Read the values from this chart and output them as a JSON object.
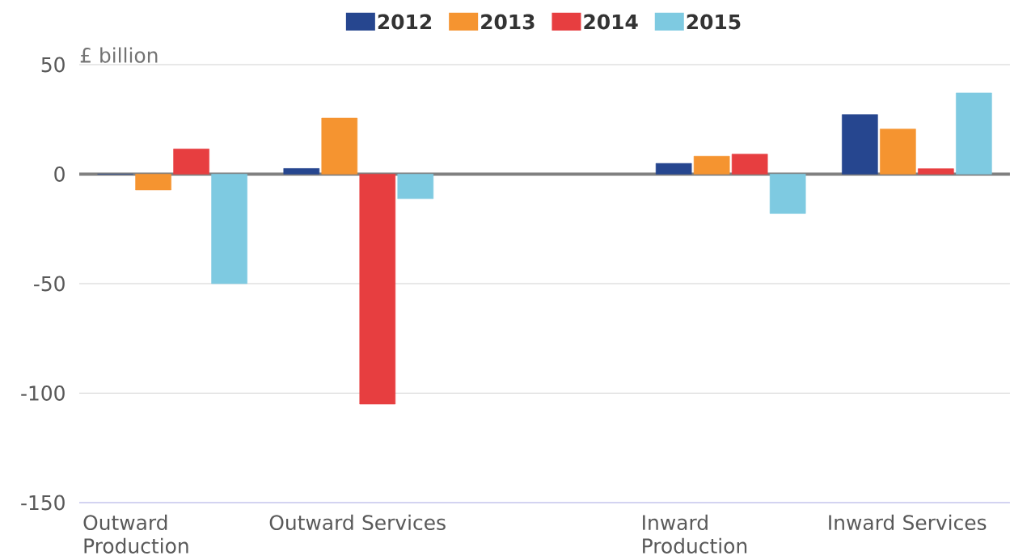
{
  "chart_data": {
    "type": "bar",
    "ylabel": "£ billion",
    "categories": [
      "Outward Production",
      "Outward Services",
      null,
      "Inward Production",
      "Inward Services"
    ],
    "series": [
      {
        "name": "2012",
        "color": "#26468f",
        "values": [
          0,
          2.6,
          null,
          4.9,
          27.2
        ]
      },
      {
        "name": "2013",
        "color": "#f59430",
        "values": [
          -7.2,
          25.6,
          null,
          8.2,
          20.6
        ]
      },
      {
        "name": "2014",
        "color": "#e73e40",
        "values": [
          11.5,
          -105,
          null,
          9.1,
          2.5
        ]
      },
      {
        "name": "2015",
        "color": "#7ecae1",
        "values": [
          -50,
          -11.2,
          null,
          -18,
          37.1
        ]
      }
    ],
    "ylim": [
      -150,
      50
    ],
    "yticks": [
      -150,
      -100,
      -50,
      0,
      50
    ],
    "ref_lines": [
      {
        "axis": "y",
        "value": 0,
        "color": "#808080"
      }
    ],
    "grid": "y",
    "legend": "top"
  }
}
